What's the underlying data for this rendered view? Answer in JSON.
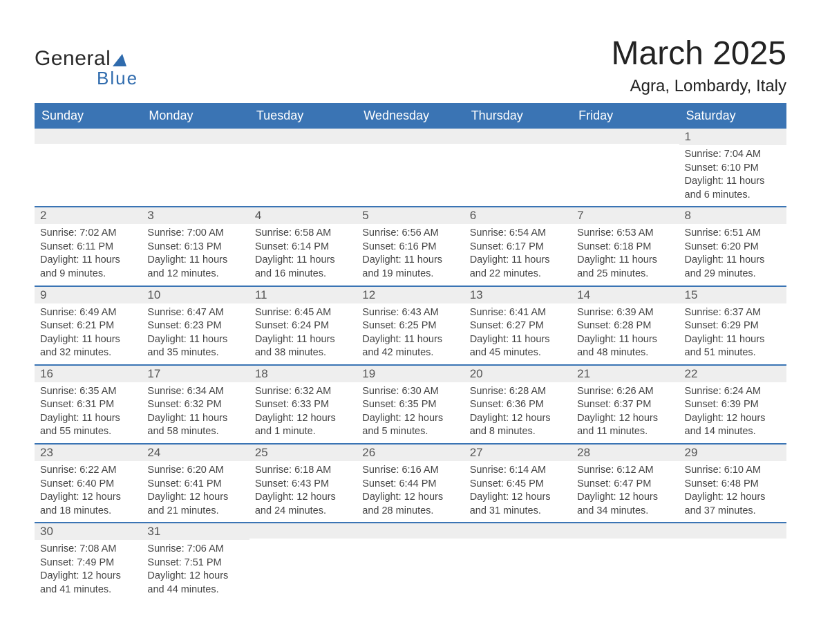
{
  "logo": {
    "text1": "General",
    "text2": "Blue"
  },
  "title": {
    "month": "March 2025",
    "location": "Agra, Lombardy, Italy"
  },
  "colors": {
    "header_bg": "#3a74b4",
    "row_alt_bg": "#eeeeee",
    "logo_accent": "#2f6bad",
    "text": "#444444"
  },
  "weekdays": [
    "Sunday",
    "Monday",
    "Tuesday",
    "Wednesday",
    "Thursday",
    "Friday",
    "Saturday"
  ],
  "weeks": [
    [
      {
        "day": ""
      },
      {
        "day": ""
      },
      {
        "day": ""
      },
      {
        "day": ""
      },
      {
        "day": ""
      },
      {
        "day": ""
      },
      {
        "day": "1",
        "sunrise": "Sunrise: 7:04 AM",
        "sunset": "Sunset: 6:10 PM",
        "daylight": "Daylight: 11 hours and 6 minutes."
      }
    ],
    [
      {
        "day": "2",
        "sunrise": "Sunrise: 7:02 AM",
        "sunset": "Sunset: 6:11 PM",
        "daylight": "Daylight: 11 hours and 9 minutes."
      },
      {
        "day": "3",
        "sunrise": "Sunrise: 7:00 AM",
        "sunset": "Sunset: 6:13 PM",
        "daylight": "Daylight: 11 hours and 12 minutes."
      },
      {
        "day": "4",
        "sunrise": "Sunrise: 6:58 AM",
        "sunset": "Sunset: 6:14 PM",
        "daylight": "Daylight: 11 hours and 16 minutes."
      },
      {
        "day": "5",
        "sunrise": "Sunrise: 6:56 AM",
        "sunset": "Sunset: 6:16 PM",
        "daylight": "Daylight: 11 hours and 19 minutes."
      },
      {
        "day": "6",
        "sunrise": "Sunrise: 6:54 AM",
        "sunset": "Sunset: 6:17 PM",
        "daylight": "Daylight: 11 hours and 22 minutes."
      },
      {
        "day": "7",
        "sunrise": "Sunrise: 6:53 AM",
        "sunset": "Sunset: 6:18 PM",
        "daylight": "Daylight: 11 hours and 25 minutes."
      },
      {
        "day": "8",
        "sunrise": "Sunrise: 6:51 AM",
        "sunset": "Sunset: 6:20 PM",
        "daylight": "Daylight: 11 hours and 29 minutes."
      }
    ],
    [
      {
        "day": "9",
        "sunrise": "Sunrise: 6:49 AM",
        "sunset": "Sunset: 6:21 PM",
        "daylight": "Daylight: 11 hours and 32 minutes."
      },
      {
        "day": "10",
        "sunrise": "Sunrise: 6:47 AM",
        "sunset": "Sunset: 6:23 PM",
        "daylight": "Daylight: 11 hours and 35 minutes."
      },
      {
        "day": "11",
        "sunrise": "Sunrise: 6:45 AM",
        "sunset": "Sunset: 6:24 PM",
        "daylight": "Daylight: 11 hours and 38 minutes."
      },
      {
        "day": "12",
        "sunrise": "Sunrise: 6:43 AM",
        "sunset": "Sunset: 6:25 PM",
        "daylight": "Daylight: 11 hours and 42 minutes."
      },
      {
        "day": "13",
        "sunrise": "Sunrise: 6:41 AM",
        "sunset": "Sunset: 6:27 PM",
        "daylight": "Daylight: 11 hours and 45 minutes."
      },
      {
        "day": "14",
        "sunrise": "Sunrise: 6:39 AM",
        "sunset": "Sunset: 6:28 PM",
        "daylight": "Daylight: 11 hours and 48 minutes."
      },
      {
        "day": "15",
        "sunrise": "Sunrise: 6:37 AM",
        "sunset": "Sunset: 6:29 PM",
        "daylight": "Daylight: 11 hours and 51 minutes."
      }
    ],
    [
      {
        "day": "16",
        "sunrise": "Sunrise: 6:35 AM",
        "sunset": "Sunset: 6:31 PM",
        "daylight": "Daylight: 11 hours and 55 minutes."
      },
      {
        "day": "17",
        "sunrise": "Sunrise: 6:34 AM",
        "sunset": "Sunset: 6:32 PM",
        "daylight": "Daylight: 11 hours and 58 minutes."
      },
      {
        "day": "18",
        "sunrise": "Sunrise: 6:32 AM",
        "sunset": "Sunset: 6:33 PM",
        "daylight": "Daylight: 12 hours and 1 minute."
      },
      {
        "day": "19",
        "sunrise": "Sunrise: 6:30 AM",
        "sunset": "Sunset: 6:35 PM",
        "daylight": "Daylight: 12 hours and 5 minutes."
      },
      {
        "day": "20",
        "sunrise": "Sunrise: 6:28 AM",
        "sunset": "Sunset: 6:36 PM",
        "daylight": "Daylight: 12 hours and 8 minutes."
      },
      {
        "day": "21",
        "sunrise": "Sunrise: 6:26 AM",
        "sunset": "Sunset: 6:37 PM",
        "daylight": "Daylight: 12 hours and 11 minutes."
      },
      {
        "day": "22",
        "sunrise": "Sunrise: 6:24 AM",
        "sunset": "Sunset: 6:39 PM",
        "daylight": "Daylight: 12 hours and 14 minutes."
      }
    ],
    [
      {
        "day": "23",
        "sunrise": "Sunrise: 6:22 AM",
        "sunset": "Sunset: 6:40 PM",
        "daylight": "Daylight: 12 hours and 18 minutes."
      },
      {
        "day": "24",
        "sunrise": "Sunrise: 6:20 AM",
        "sunset": "Sunset: 6:41 PM",
        "daylight": "Daylight: 12 hours and 21 minutes."
      },
      {
        "day": "25",
        "sunrise": "Sunrise: 6:18 AM",
        "sunset": "Sunset: 6:43 PM",
        "daylight": "Daylight: 12 hours and 24 minutes."
      },
      {
        "day": "26",
        "sunrise": "Sunrise: 6:16 AM",
        "sunset": "Sunset: 6:44 PM",
        "daylight": "Daylight: 12 hours and 28 minutes."
      },
      {
        "day": "27",
        "sunrise": "Sunrise: 6:14 AM",
        "sunset": "Sunset: 6:45 PM",
        "daylight": "Daylight: 12 hours and 31 minutes."
      },
      {
        "day": "28",
        "sunrise": "Sunrise: 6:12 AM",
        "sunset": "Sunset: 6:47 PM",
        "daylight": "Daylight: 12 hours and 34 minutes."
      },
      {
        "day": "29",
        "sunrise": "Sunrise: 6:10 AM",
        "sunset": "Sunset: 6:48 PM",
        "daylight": "Daylight: 12 hours and 37 minutes."
      }
    ],
    [
      {
        "day": "30",
        "sunrise": "Sunrise: 7:08 AM",
        "sunset": "Sunset: 7:49 PM",
        "daylight": "Daylight: 12 hours and 41 minutes."
      },
      {
        "day": "31",
        "sunrise": "Sunrise: 7:06 AM",
        "sunset": "Sunset: 7:51 PM",
        "daylight": "Daylight: 12 hours and 44 minutes."
      },
      {
        "day": ""
      },
      {
        "day": ""
      },
      {
        "day": ""
      },
      {
        "day": ""
      },
      {
        "day": ""
      }
    ]
  ]
}
